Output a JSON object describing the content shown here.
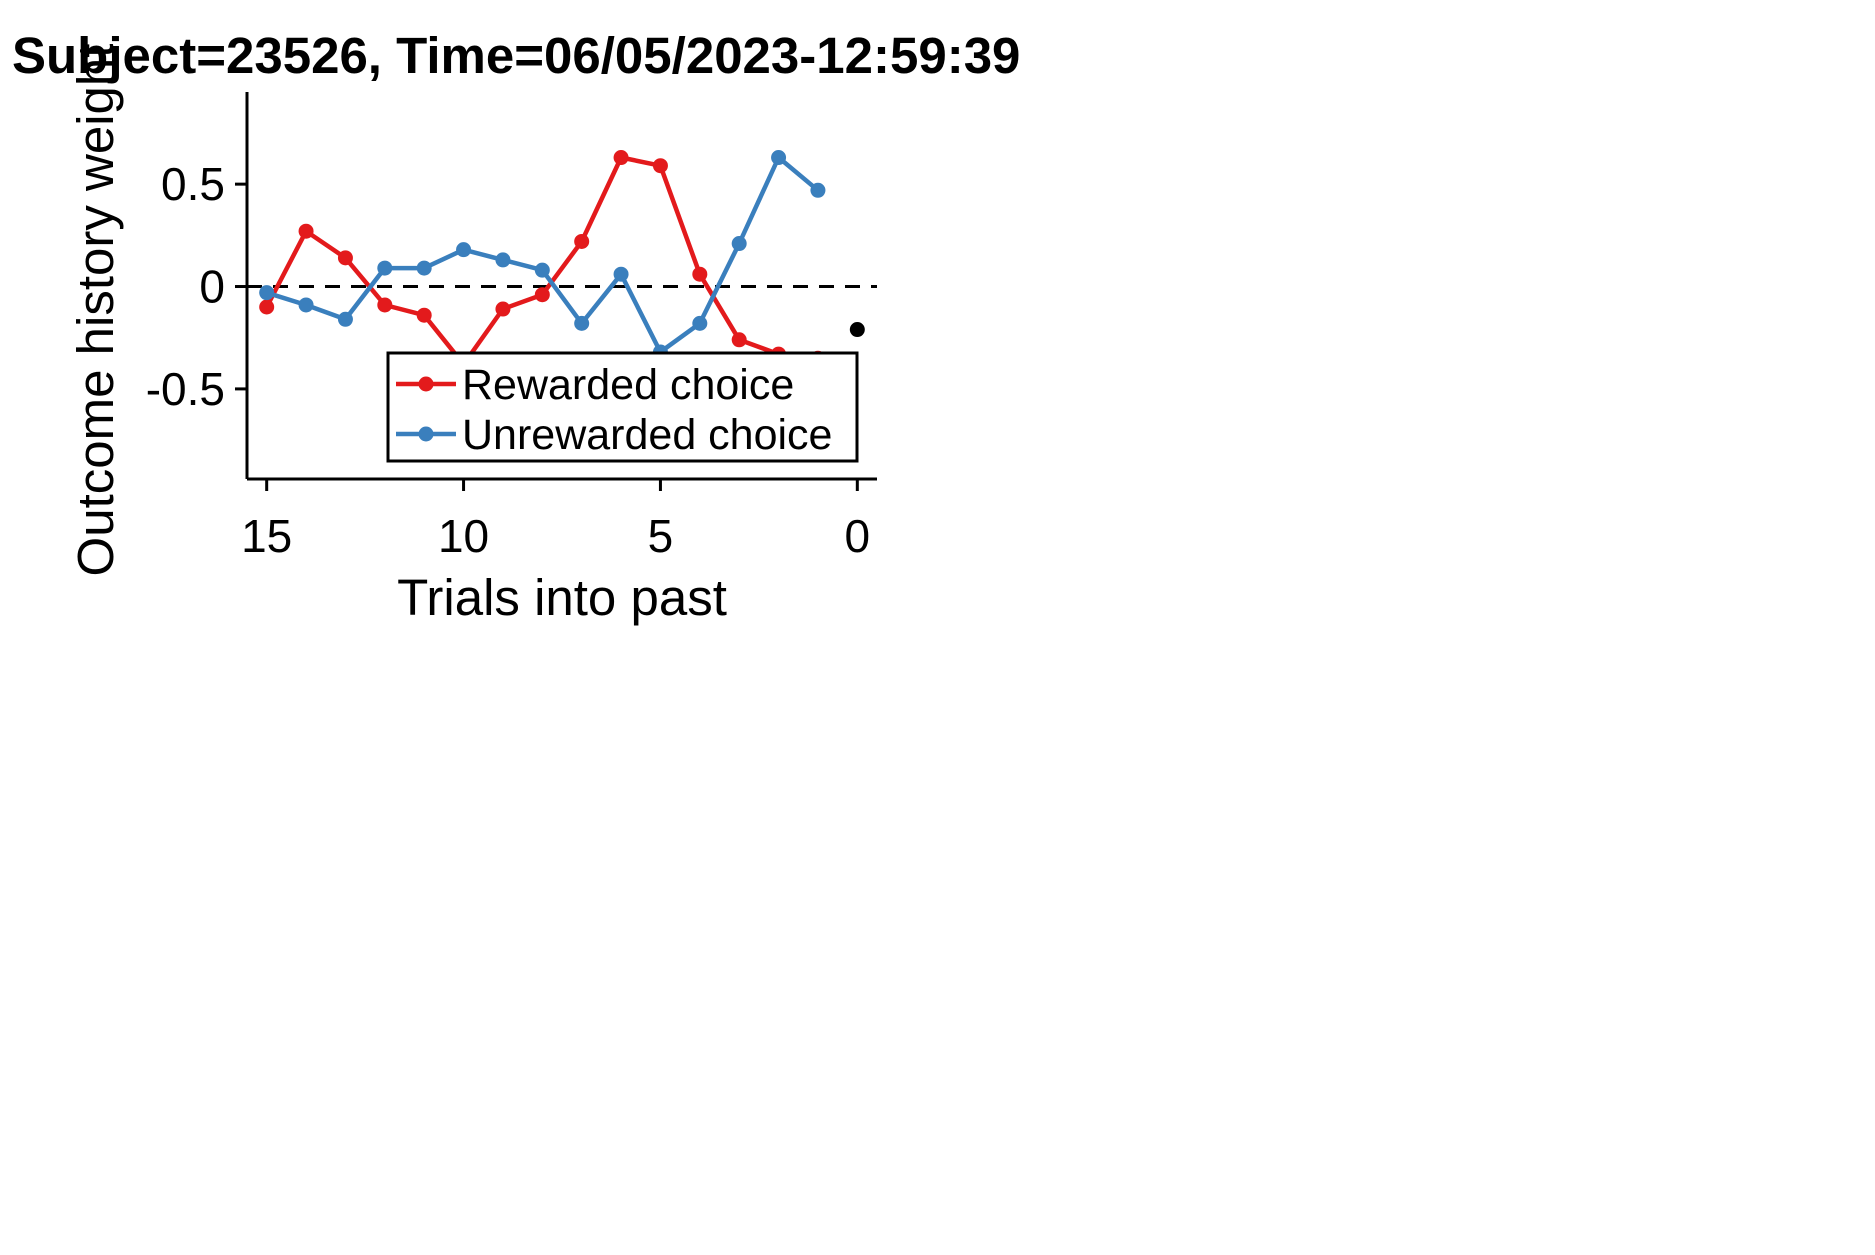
{
  "chart_data": {
    "type": "line",
    "title": "Subject=23526, Time=06/05/2023-12:59:39",
    "xlabel": "Trials into past",
    "ylabel": "Outcome history weight",
    "xlim": [
      15.5,
      -0.5
    ],
    "ylim": [
      -0.94,
      0.95
    ],
    "x_ticks": [
      15,
      10,
      5,
      0
    ],
    "x_tick_labels": [
      "15",
      "10",
      "5",
      "0"
    ],
    "y_ticks": [
      0.5,
      0,
      -0.5
    ],
    "y_tick_labels": [
      "0.5",
      "0",
      "-0.5"
    ],
    "reference_line": {
      "y": 0,
      "style": "dashed",
      "color": "#000000"
    },
    "series": [
      {
        "name": "Rewarded choice",
        "color": "#e31a1c",
        "x": [
          15,
          14,
          13,
          12,
          11,
          10,
          9,
          8,
          7,
          6,
          5,
          4,
          3,
          2,
          1
        ],
        "values": [
          -0.1,
          0.27,
          0.14,
          -0.09,
          -0.14,
          -0.38,
          -0.11,
          -0.04,
          0.22,
          0.63,
          0.59,
          0.06,
          -0.26,
          -0.33,
          -0.35
        ]
      },
      {
        "name": "Unrewarded choice",
        "color": "#3a7fbd",
        "x": [
          15,
          14,
          13,
          12,
          11,
          10,
          9,
          8,
          7,
          6,
          5,
          4,
          3,
          2,
          1
        ],
        "values": [
          -0.03,
          -0.09,
          -0.16,
          0.09,
          0.09,
          0.18,
          0.13,
          0.08,
          -0.18,
          0.06,
          -0.32,
          -0.18,
          0.21,
          0.63,
          0.47
        ]
      }
    ],
    "extra_points": [
      {
        "x": 0,
        "y": -0.21,
        "color": "#000000"
      }
    ],
    "legend_position": "lower-right",
    "grid": false
  }
}
